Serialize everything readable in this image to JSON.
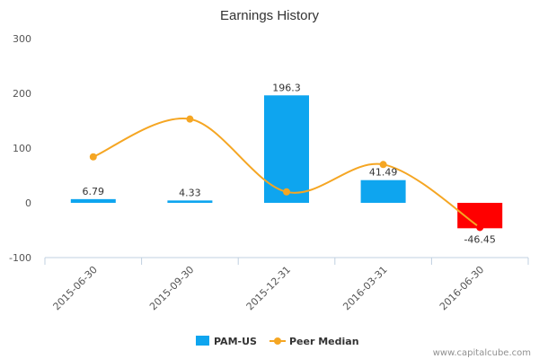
{
  "chart_data": {
    "type": "bar",
    "title": "Earnings History",
    "categories": [
      "2015-06-30",
      "2015-09-30",
      "2015-12-31",
      "2016-03-31",
      "2016-06-30"
    ],
    "series": [
      {
        "name": "PAM-US",
        "kind": "bar",
        "values": [
          6.79,
          4.33,
          196.3,
          41.49,
          -46.45
        ],
        "labels": [
          "6.79",
          "4.33",
          "196.3",
          "41.49",
          "-46.45"
        ],
        "color": "#0ea5ef",
        "negative_color": "#ff0000"
      },
      {
        "name": "Peer Median",
        "kind": "line",
        "values": [
          84,
          153,
          20,
          70,
          -45
        ],
        "color": "#f5a623"
      }
    ],
    "ylim": [
      -100,
      300
    ],
    "yticks": [
      "-100",
      "0",
      "100",
      "200",
      "300"
    ],
    "xlabel": "",
    "ylabel": "",
    "legend_position": "bottom-center",
    "credit": "www.capitalcube.com"
  }
}
